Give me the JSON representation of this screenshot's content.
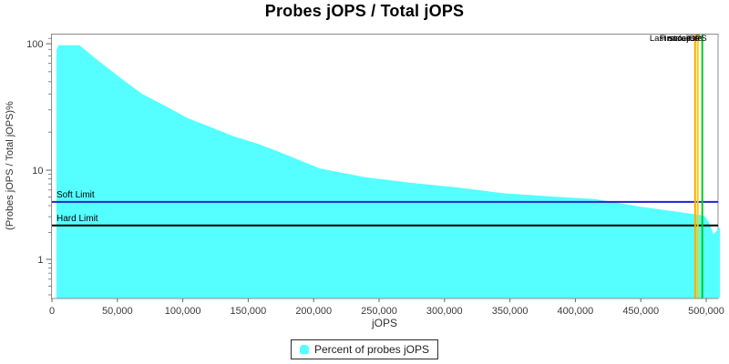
{
  "title": "Probes jOPS / Total jOPS",
  "chart_data": {
    "type": "area",
    "title": "Probes jOPS / Total jOPS",
    "xlabel": "jOPS",
    "ylabel": "(Probes jOPS / Total jOPS)%",
    "x_ticks": [
      0,
      50000,
      100000,
      150000,
      200000,
      250000,
      300000,
      350000,
      400000,
      450000,
      500000
    ],
    "xlim": [
      0,
      511000
    ],
    "y_scale": "log",
    "y_major_ticks": [
      100,
      10,
      1
    ],
    "y_minor_ticks": [
      110,
      90,
      80,
      70,
      60,
      50,
      40,
      30,
      20,
      9,
      8,
      7,
      6,
      5,
      4,
      3,
      2,
      0.9,
      0.8,
      0.7,
      0.6,
      0.5,
      0.4
    ],
    "ylim": [
      0.36,
      125
    ],
    "grid": "off",
    "series": [
      {
        "name": "Percent of probes jOPS",
        "color": "#55ffff",
        "points": [
          [
            3500,
            88
          ],
          [
            4900,
            97
          ],
          [
            21000,
            97
          ],
          [
            34000,
            75.5
          ],
          [
            52000,
            54
          ],
          [
            69000,
            40
          ],
          [
            87000,
            32
          ],
          [
            104000,
            25.7
          ],
          [
            122000,
            21.8
          ],
          [
            139000,
            18.5
          ],
          [
            157000,
            16.2
          ],
          [
            174000,
            13.9
          ],
          [
            205000,
            10.3
          ],
          [
            240000,
            8.3
          ],
          [
            275000,
            7.2
          ],
          [
            310000,
            6.4
          ],
          [
            345000,
            5.5
          ],
          [
            380000,
            5.1
          ],
          [
            415000,
            4.75
          ],
          [
            450000,
            3.9
          ],
          [
            485000,
            3.3
          ],
          [
            495000,
            3.15
          ],
          [
            499000,
            3.05
          ],
          [
            502000,
            2.6
          ],
          [
            504000,
            2.2
          ],
          [
            505500,
            1.92
          ],
          [
            507000,
            2.0
          ],
          [
            509000,
            2.2
          ],
          [
            510500,
            2.25
          ]
        ]
      }
    ],
    "limit_lines": [
      {
        "label": "Soft Limit",
        "value": 4.4,
        "color": "#2121cd"
      },
      {
        "label": "Hard Limit",
        "value": 2.4,
        "color": "#000000"
      }
    ],
    "vertical_markers": [
      {
        "label": "Last success",
        "x": 491500,
        "color": "#ffaa00"
      },
      {
        "label": "First failure",
        "x": 493500,
        "color": "#ffcc00"
      },
      {
        "label": "max-jOPS",
        "x": 497000,
        "color": "#00cc22"
      }
    ],
    "legend": {
      "position": "bottom",
      "items": [
        {
          "label": "Percent of probes jOPS",
          "color": "#55ffff"
        }
      ]
    }
  }
}
